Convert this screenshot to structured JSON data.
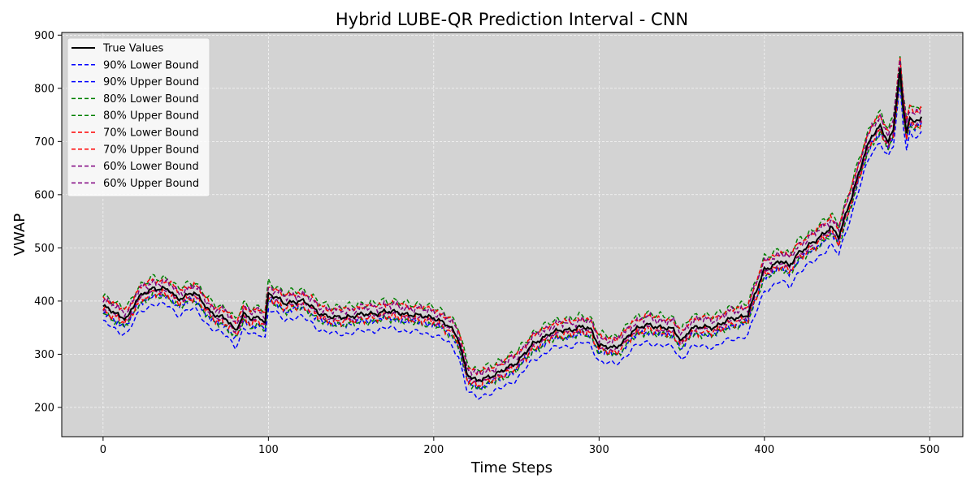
{
  "chart_data": {
    "type": "line",
    "title": "Hybrid LUBE-QR Prediction Interval - CNN",
    "xlabel": "Time Steps",
    "ylabel": "VWAP",
    "xlim": [
      -25,
      520
    ],
    "ylim": [
      145,
      905
    ],
    "xticks": [
      0,
      100,
      200,
      300,
      400,
      500
    ],
    "yticks": [
      200,
      300,
      400,
      500,
      600,
      700,
      800,
      900
    ],
    "grid": true,
    "background": "#d3d3d3",
    "legend": {
      "position": "top-left"
    },
    "x_range": [
      0,
      495
    ],
    "true_values": {
      "name": "True Values",
      "color": "#000000",
      "style": "solid",
      "x": [
        0,
        10,
        15,
        20,
        25,
        30,
        40,
        45,
        50,
        55,
        60,
        65,
        70,
        75,
        80,
        85,
        90,
        95,
        98,
        100,
        105,
        110,
        115,
        120,
        125,
        130,
        135,
        140,
        150,
        160,
        170,
        180,
        190,
        200,
        205,
        210,
        215,
        220,
        223,
        226,
        230,
        240,
        250,
        260,
        270,
        280,
        290,
        295,
        300,
        305,
        310,
        315,
        320,
        330,
        340,
        345,
        350,
        355,
        360,
        370,
        380,
        390,
        400,
        410,
        415,
        420,
        430,
        440,
        445,
        450,
        455,
        460,
        465,
        470,
        475,
        478,
        480,
        482,
        484,
        486,
        488,
        490,
        495
      ],
      "y": [
        390,
        372,
        370,
        400,
        415,
        425,
        420,
        405,
        410,
        415,
        400,
        380,
        370,
        365,
        345,
        375,
        365,
        370,
        362,
        415,
        405,
        395,
        400,
        400,
        392,
        380,
        372,
        368,
        372,
        375,
        380,
        378,
        372,
        370,
        360,
        350,
        330,
        265,
        255,
        248,
        255,
        265,
        285,
        318,
        340,
        345,
        352,
        345,
        318,
        315,
        310,
        325,
        345,
        355,
        350,
        345,
        325,
        348,
        350,
        352,
        366,
        375,
        460,
        475,
        465,
        490,
        510,
        540,
        520,
        570,
        620,
        670,
        710,
        730,
        700,
        720,
        780,
        835,
        760,
        720,
        750,
        735,
        745
      ]
    },
    "interval_offsets": {
      "x": [
        0,
        100,
        200,
        300,
        400,
        470,
        495
      ],
      "series": [
        {
          "name": "90% Lower Bound",
          "color": "#0000ff",
          "style": "dashed",
          "offset": [
            -30,
            -30,
            -32,
            -30,
            -40,
            -30,
            -30
          ]
        },
        {
          "name": "90% Upper Bound",
          "color": "#0000ff",
          "style": "dashed",
          "offset": [
            -14,
            -14,
            -13,
            -13,
            -14,
            -13,
            -14
          ]
        },
        {
          "name": "80% Lower Bound",
          "color": "#008000",
          "style": "dashed",
          "offset": [
            -14,
            -14,
            -14,
            -13,
            -15,
            -14,
            -15
          ]
        },
        {
          "name": "80% Upper Bound",
          "color": "#008000",
          "style": "dashed",
          "offset": [
            20,
            20,
            20,
            21,
            22,
            24,
            24
          ]
        },
        {
          "name": "70% Lower Bound",
          "color": "#ff0000",
          "style": "dashed",
          "offset": [
            -8,
            -8,
            -8,
            -8,
            -9,
            -9,
            -9
          ]
        },
        {
          "name": "70% Upper Bound",
          "color": "#ff0000",
          "style": "dashed",
          "offset": [
            15,
            15,
            15,
            16,
            17,
            19,
            20
          ]
        },
        {
          "name": "60% Lower Bound",
          "color": "#800080",
          "style": "dashed",
          "offset": [
            -4,
            -4,
            -4,
            -4,
            -5,
            -5,
            -5
          ]
        },
        {
          "name": "60% Upper Bound",
          "color": "#800080",
          "style": "dashed",
          "offset": [
            12,
            12,
            12,
            13,
            14,
            16,
            17
          ]
        }
      ]
    }
  }
}
